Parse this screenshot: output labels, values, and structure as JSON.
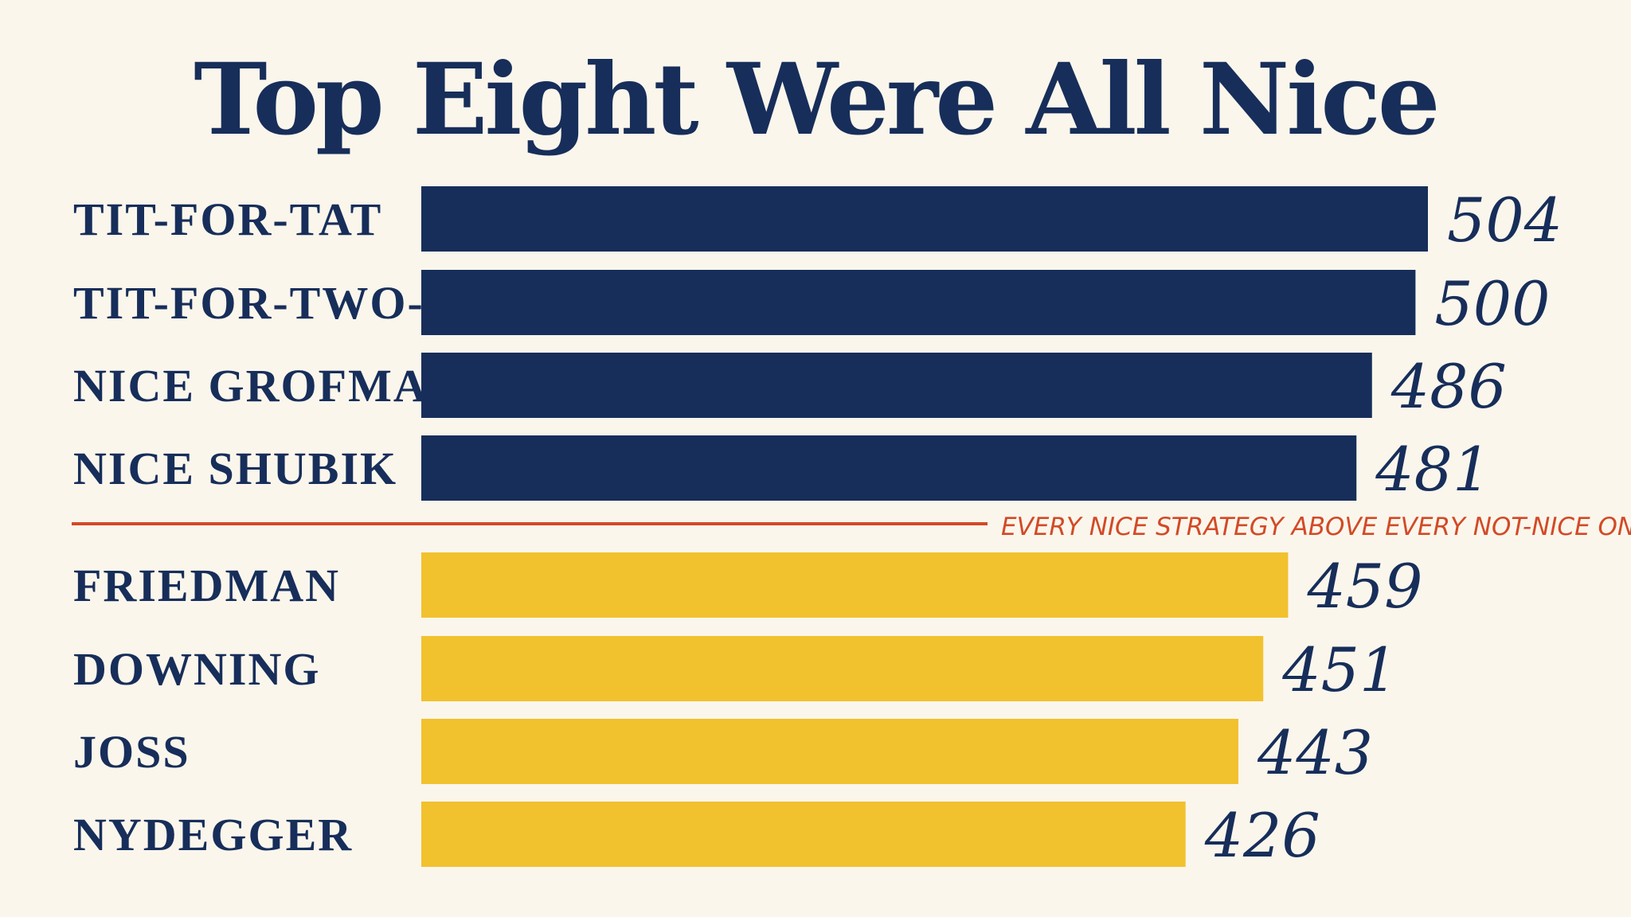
{
  "chart_data": {
    "type": "bar",
    "orientation": "horizontal",
    "title": "Top Eight Were All Nice",
    "categories": [
      "TIT-FOR-TAT",
      "TIT-FOR-TWO-TATS",
      "NICE GROFMAN",
      "NICE SHUBIK",
      "FRIEDMAN",
      "DOWNING",
      "JOSS",
      "NYDEGGER"
    ],
    "values": [
      504,
      500,
      486,
      481,
      459,
      451,
      443,
      426
    ],
    "xlim": [
      180,
      504
    ],
    "grid": false,
    "legend": "none",
    "annotation": {
      "text": "EVERY NICE STRATEGY ABOVE EVERY NOT-NICE ONE",
      "after_index": 3
    },
    "colors": {
      "group_a": "#172e5a",
      "group_b": "#f2c12e",
      "divider": "#d24a26",
      "text": "#172e5a",
      "background": "#fbf6ec"
    },
    "group_split_index": 4
  }
}
